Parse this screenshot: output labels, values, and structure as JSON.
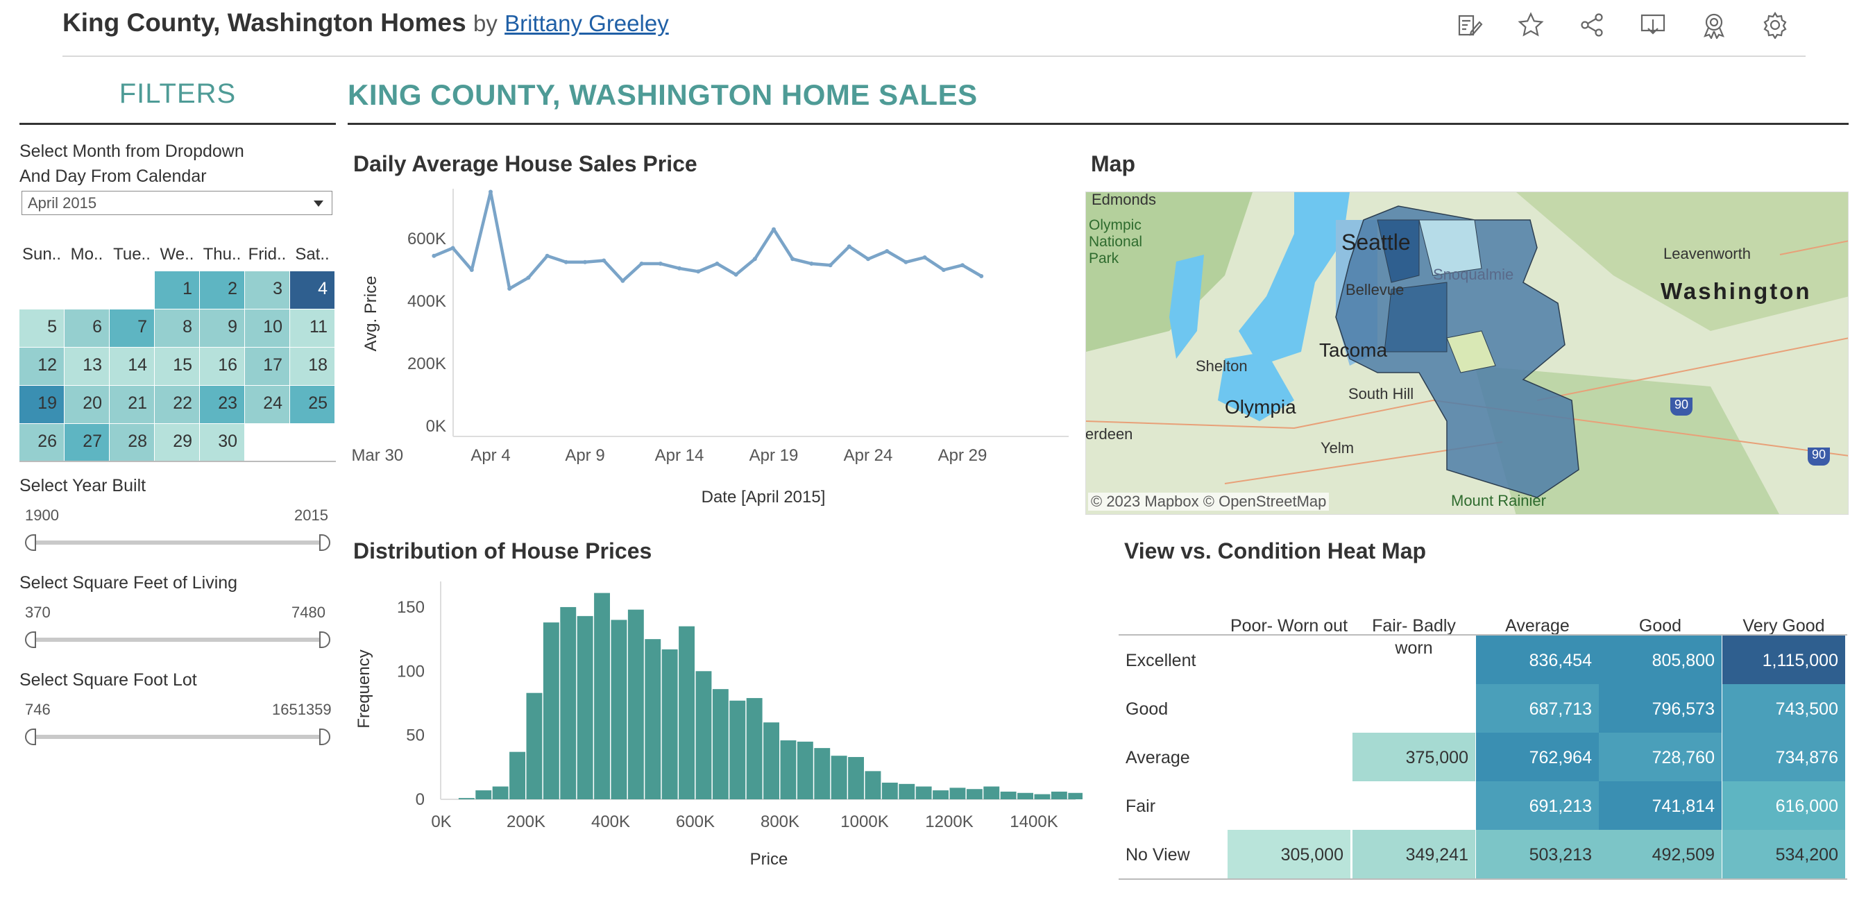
{
  "header": {
    "title": "King County, Washington Homes",
    "by": "by",
    "author": "Brittany Greeley",
    "toolbar": [
      "edit-icon",
      "star-icon",
      "share-icon",
      "download-icon",
      "badge-icon",
      "gear-icon"
    ]
  },
  "filters": {
    "title": "FILTERS",
    "month_label_1": "Select Month from Dropdown",
    "month_label_2": "And Day From Calendar",
    "month_value": "April 2015",
    "calendar": {
      "weekdays": [
        "Sun..",
        "Mo..",
        "Tue..",
        "We..",
        "Thu..",
        "Frid..",
        "Sat.."
      ],
      "days": [
        "1",
        "2",
        "3",
        "4",
        "5",
        "6",
        "7",
        "8",
        "9",
        "10",
        "11",
        "12",
        "13",
        "14",
        "15",
        "16",
        "17",
        "18",
        "19",
        "20",
        "21",
        "22",
        "23",
        "24",
        "25",
        "26",
        "27",
        "28",
        "29",
        "30"
      ],
      "day_colors": [
        "#5eb5c2",
        "#5eb5c2",
        "#95cfcf",
        "#2f5f8f",
        "#b6e1db",
        "#95cfcf",
        "#5eb5c2",
        "#95cfcf",
        "#95cfcf",
        "#95cfcf",
        "#b6e1db",
        "#95cfcf",
        "#b6e1db",
        "#b6e1db",
        "#b6e1db",
        "#b6e1db",
        "#95cfcf",
        "#b6e1db",
        "#3a8fb2",
        "#95cfcf",
        "#95cfcf",
        "#95cfcf",
        "#5eb5c2",
        "#95cfcf",
        "#5eb5c2",
        "#95cfcf",
        "#5eb5c2",
        "#95cfcf",
        "#b6e1db",
        "#b6e1db"
      ]
    },
    "year_built": {
      "label": "Select Year Built",
      "min": "1900",
      "max": "2015"
    },
    "sqft_living": {
      "label": "Select Square Feet of Living",
      "min": "370",
      "max": "7480"
    },
    "sqft_lot": {
      "label": "Select Square Foot Lot",
      "min": "746",
      "max": "1651359"
    }
  },
  "main": {
    "title": "KING COUNTY, WASHINGTON HOME SALES",
    "line_title": "Daily Average House Sales Price",
    "map_title": "Map",
    "hist_title": "Distribution of House Prices",
    "heat_title": "View vs. Condition Heat Map"
  },
  "map": {
    "labels": [
      "Edmonds",
      "Olympic National Park",
      "Seattle",
      "Snoqualmie",
      "Leavenworth",
      "Washington",
      "Bellevue",
      "Shelton",
      "Tacoma",
      "South Hill",
      "Olympia",
      "Aberdeen",
      "Yelm",
      "Mount Rainier",
      "90",
      "90"
    ],
    "attribution": "© 2023 Mapbox  © OpenStreetMap"
  },
  "chart_data": [
    {
      "type": "line",
      "title": "Daily Average House Sales Price",
      "xlabel": "Date [April 2015]",
      "ylabel": "Avg. Price",
      "x_ticks": [
        "Mar 30",
        "Apr 4",
        "Apr 9",
        "Apr 14",
        "Apr 19",
        "Apr 24",
        "Apr 29"
      ],
      "y_ticks": [
        "0K",
        "200K",
        "400K",
        "600K"
      ],
      "ylim": [
        0,
        760000
      ],
      "x": [
        "Apr 1",
        "Apr 2",
        "Apr 3",
        "Apr 4",
        "Apr 5",
        "Apr 6",
        "Apr 7",
        "Apr 8",
        "Apr 9",
        "Apr 10",
        "Apr 11",
        "Apr 12",
        "Apr 13",
        "Apr 14",
        "Apr 15",
        "Apr 16",
        "Apr 17",
        "Apr 18",
        "Apr 19",
        "Apr 20",
        "Apr 21",
        "Apr 22",
        "Apr 23",
        "Apr 24",
        "Apr 25",
        "Apr 26",
        "Apr 27",
        "Apr 28",
        "Apr 29",
        "Apr 30"
      ],
      "values": [
        545000,
        570000,
        500000,
        750000,
        440000,
        475000,
        545000,
        525000,
        525000,
        530000,
        465000,
        520000,
        520000,
        505000,
        495000,
        520000,
        485000,
        535000,
        630000,
        535000,
        520000,
        515000,
        575000,
        535000,
        560000,
        525000,
        540000,
        500000,
        515000,
        480000
      ],
      "color": "#7aa4c8",
      "grid": false
    },
    {
      "type": "bar",
      "title": "Distribution of House Prices",
      "xlabel": "Price",
      "ylabel": "Frequency",
      "x_ticks": [
        "0K",
        "200K",
        "400K",
        "600K",
        "800K",
        "1000K",
        "1200K",
        "1400K"
      ],
      "y_ticks": [
        "0",
        "50",
        "100",
        "150"
      ],
      "ylim": [
        0,
        170
      ],
      "bin_width": 40000,
      "bin_start": 40000,
      "values": [
        1,
        7,
        10,
        37,
        83,
        138,
        150,
        143,
        161,
        140,
        148,
        125,
        117,
        135,
        100,
        86,
        77,
        79,
        60,
        46,
        45,
        40,
        34,
        33,
        22,
        13,
        12,
        10,
        7,
        9,
        8,
        10,
        6,
        5,
        4,
        6,
        5,
        4,
        3,
        2
      ],
      "color": "#4a9a92",
      "grid": false
    },
    {
      "type": "heatmap",
      "title": "View vs. Condition Heat Map",
      "columns": [
        "Poor- Worn out",
        "Fair- Badly worn",
        "Average",
        "Good",
        "Very Good"
      ],
      "rows": [
        "Excellent",
        "Good",
        "Average",
        "Fair",
        "No View"
      ],
      "values": [
        [
          null,
          null,
          "836,454",
          "805,800",
          "1,115,000"
        ],
        [
          null,
          null,
          "687,713",
          "796,573",
          "743,500"
        ],
        [
          null,
          "375,000",
          "762,964",
          "728,760",
          "734,876"
        ],
        [
          null,
          null,
          "691,213",
          "741,814",
          "616,000"
        ],
        [
          "305,000",
          "349,241",
          "503,213",
          "492,509",
          "534,200"
        ]
      ],
      "colors": [
        [
          null,
          null,
          "#3a8fb2",
          "#3a8fb2",
          "#2f5f8f"
        ],
        [
          null,
          null,
          "#4a9fba",
          "#3a8fb2",
          "#4a9fba"
        ],
        [
          null,
          "#a6dad2",
          "#3a8fb2",
          "#4a9fba",
          "#4a9fba"
        ],
        [
          null,
          null,
          "#4a9fba",
          "#3a8fb2",
          "#5eb5c2"
        ],
        [
          "#b9e4da",
          "#a6dad2",
          "#7cc5c7",
          "#7cc5c7",
          "#6dbdc5"
        ]
      ]
    }
  ]
}
